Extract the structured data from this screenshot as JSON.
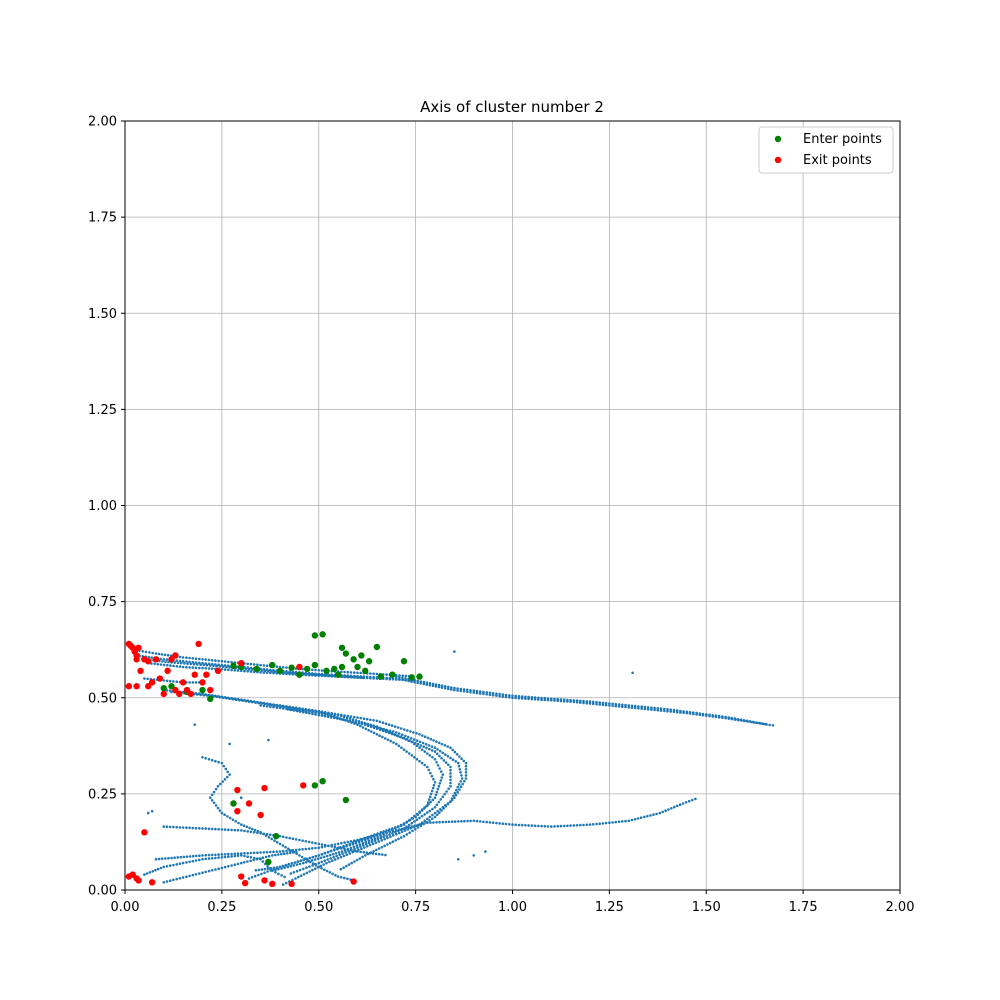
{
  "chart_data": {
    "type": "scatter",
    "title": "Axis of cluster number 2",
    "xlabel": "",
    "ylabel": "",
    "xlim": [
      0,
      2
    ],
    "ylim": [
      0,
      2
    ],
    "x_ticks": [
      0,
      0.25,
      0.5,
      0.75,
      1.0,
      1.25,
      1.5,
      1.75,
      2.0
    ],
    "y_ticks": [
      0,
      0.25,
      0.5,
      0.75,
      1.0,
      1.25,
      1.5,
      1.75,
      2.0
    ],
    "x_tick_labels": [
      "0.00",
      "0.25",
      "0.50",
      "0.75",
      "1.00",
      "1.25",
      "1.50",
      "1.75",
      "2.00"
    ],
    "y_tick_labels": [
      "0.00",
      "0.25",
      "0.50",
      "0.75",
      "1.00",
      "1.25",
      "1.50",
      "1.75",
      "2.00"
    ],
    "grid": true,
    "legend_position": "top-right",
    "trajectory_color": "#1f77b4",
    "trajectories": [
      [
        [
          0.02,
          0.625
        ],
        [
          0.08,
          0.615
        ],
        [
          0.15,
          0.605
        ],
        [
          0.25,
          0.595
        ],
        [
          0.35,
          0.585
        ],
        [
          0.45,
          0.575
        ],
        [
          0.55,
          0.568
        ],
        [
          0.65,
          0.562
        ],
        [
          0.75,
          0.555
        ]
      ],
      [
        [
          0.03,
          0.61
        ],
        [
          0.1,
          0.6
        ],
        [
          0.2,
          0.59
        ],
        [
          0.3,
          0.58
        ],
        [
          0.4,
          0.57
        ],
        [
          0.5,
          0.562
        ],
        [
          0.6,
          0.556
        ],
        [
          0.7,
          0.55
        ]
      ],
      [
        [
          0.05,
          0.6
        ],
        [
          0.12,
          0.592
        ],
        [
          0.22,
          0.584
        ],
        [
          0.32,
          0.574
        ],
        [
          0.42,
          0.565
        ],
        [
          0.52,
          0.558
        ],
        [
          0.62,
          0.552
        ]
      ],
      [
        [
          0.06,
          0.59
        ],
        [
          0.15,
          0.58
        ],
        [
          0.25,
          0.574
        ],
        [
          0.35,
          0.566
        ],
        [
          0.45,
          0.56
        ],
        [
          0.55,
          0.555
        ],
        [
          0.65,
          0.55
        ],
        [
          0.75,
          0.545
        ]
      ],
      [
        [
          0.7,
          0.55
        ],
        [
          0.85,
          0.52
        ],
        [
          1.0,
          0.5
        ],
        [
          1.15,
          0.49
        ],
        [
          1.3,
          0.475
        ],
        [
          1.45,
          0.46
        ],
        [
          1.55,
          0.447
        ],
        [
          1.68,
          0.427
        ]
      ],
      [
        [
          0.7,
          0.555
        ],
        [
          0.85,
          0.525
        ],
        [
          1.0,
          0.505
        ],
        [
          1.2,
          0.49
        ],
        [
          1.4,
          0.47
        ],
        [
          1.55,
          0.45
        ],
        [
          1.66,
          0.43
        ]
      ],
      [
        [
          0.1,
          0.52
        ],
        [
          0.2,
          0.51
        ],
        [
          0.3,
          0.495
        ],
        [
          0.4,
          0.48
        ],
        [
          0.5,
          0.465
        ],
        [
          0.6,
          0.43
        ],
        [
          0.7,
          0.38
        ],
        [
          0.78,
          0.32
        ],
        [
          0.8,
          0.28
        ],
        [
          0.78,
          0.22
        ],
        [
          0.72,
          0.17
        ],
        [
          0.62,
          0.13
        ],
        [
          0.5,
          0.09
        ],
        [
          0.4,
          0.06
        ],
        [
          0.33,
          0.05
        ]
      ],
      [
        [
          0.12,
          0.515
        ],
        [
          0.22,
          0.505
        ],
        [
          0.32,
          0.49
        ],
        [
          0.42,
          0.475
        ],
        [
          0.55,
          0.455
        ],
        [
          0.65,
          0.425
        ],
        [
          0.74,
          0.385
        ],
        [
          0.8,
          0.34
        ],
        [
          0.82,
          0.3
        ],
        [
          0.8,
          0.24
        ],
        [
          0.75,
          0.19
        ],
        [
          0.66,
          0.14
        ],
        [
          0.56,
          0.1
        ],
        [
          0.46,
          0.07
        ],
        [
          0.38,
          0.05
        ]
      ],
      [
        [
          0.35,
          0.48
        ],
        [
          0.5,
          0.46
        ],
        [
          0.62,
          0.43
        ],
        [
          0.72,
          0.395
        ],
        [
          0.8,
          0.36
        ],
        [
          0.84,
          0.32
        ],
        [
          0.84,
          0.27
        ],
        [
          0.8,
          0.215
        ],
        [
          0.72,
          0.16
        ],
        [
          0.6,
          0.11
        ],
        [
          0.5,
          0.07
        ],
        [
          0.42,
          0.04
        ]
      ],
      [
        [
          0.42,
          0.47
        ],
        [
          0.58,
          0.44
        ],
        [
          0.7,
          0.41
        ],
        [
          0.8,
          0.37
        ],
        [
          0.86,
          0.33
        ],
        [
          0.87,
          0.29
        ],
        [
          0.84,
          0.23
        ],
        [
          0.76,
          0.17
        ],
        [
          0.64,
          0.12
        ],
        [
          0.52,
          0.07
        ],
        [
          0.44,
          0.03
        ],
        [
          0.4,
          0.01
        ]
      ],
      [
        [
          0.5,
          0.465
        ],
        [
          0.65,
          0.44
        ],
        [
          0.76,
          0.405
        ],
        [
          0.84,
          0.37
        ],
        [
          0.88,
          0.33
        ],
        [
          0.88,
          0.29
        ],
        [
          0.85,
          0.24
        ],
        [
          0.8,
          0.19
        ],
        [
          0.72,
          0.14
        ],
        [
          0.62,
          0.09
        ],
        [
          0.55,
          0.05
        ]
      ],
      [
        [
          0.1,
          0.165
        ],
        [
          0.2,
          0.16
        ],
        [
          0.3,
          0.155
        ],
        [
          0.4,
          0.14
        ],
        [
          0.5,
          0.12
        ],
        [
          0.6,
          0.1
        ],
        [
          0.68,
          0.09
        ]
      ],
      [
        [
          0.08,
          0.08
        ],
        [
          0.2,
          0.09
        ],
        [
          0.3,
          0.095
        ],
        [
          0.4,
          0.1
        ],
        [
          0.5,
          0.11
        ],
        [
          0.6,
          0.13
        ],
        [
          0.7,
          0.155
        ],
        [
          0.78,
          0.175
        ],
        [
          0.9,
          0.18
        ],
        [
          1.0,
          0.17
        ],
        [
          1.1,
          0.165
        ],
        [
          1.2,
          0.17
        ],
        [
          1.3,
          0.18
        ],
        [
          1.38,
          0.2
        ],
        [
          1.44,
          0.225
        ],
        [
          1.48,
          0.24
        ]
      ],
      [
        [
          0.2,
          0.345
        ],
        [
          0.25,
          0.33
        ],
        [
          0.27,
          0.3
        ],
        [
          0.24,
          0.27
        ],
        [
          0.22,
          0.24
        ],
        [
          0.25,
          0.2
        ],
        [
          0.3,
          0.17
        ],
        [
          0.35,
          0.15
        ],
        [
          0.4,
          0.12
        ],
        [
          0.45,
          0.09
        ],
        [
          0.5,
          0.06
        ],
        [
          0.55,
          0.035
        ],
        [
          0.59,
          0.025
        ]
      ],
      [
        [
          0.05,
          0.04
        ],
        [
          0.1,
          0.06
        ],
        [
          0.2,
          0.08
        ],
        [
          0.3,
          0.09
        ],
        [
          0.35,
          0.08
        ],
        [
          0.38,
          0.05
        ],
        [
          0.42,
          0.03
        ]
      ],
      [
        [
          0.1,
          0.02
        ],
        [
          0.2,
          0.045
        ],
        [
          0.3,
          0.07
        ],
        [
          0.38,
          0.09
        ],
        [
          0.45,
          0.1
        ]
      ],
      [
        [
          0.32,
          0.03
        ],
        [
          0.4,
          0.06
        ],
        [
          0.5,
          0.09
        ],
        [
          0.58,
          0.12
        ],
        [
          0.66,
          0.15
        ],
        [
          0.72,
          0.17
        ]
      ],
      [
        [
          0.05,
          0.55
        ],
        [
          0.1,
          0.545
        ],
        [
          0.15,
          0.54
        ],
        [
          0.2,
          0.54
        ]
      ]
    ],
    "scattered_points": [
      [
        0.85,
        0.62
      ],
      [
        1.31,
        0.565
      ],
      [
        0.18,
        0.43
      ],
      [
        0.37,
        0.39
      ],
      [
        0.27,
        0.38
      ],
      [
        0.86,
        0.08
      ],
      [
        0.9,
        0.09
      ],
      [
        0.93,
        0.1
      ],
      [
        0.06,
        0.2
      ],
      [
        0.07,
        0.205
      ],
      [
        0.3,
        0.24
      ]
    ],
    "series": [
      {
        "name": "Enter points",
        "color": "#008000",
        "points": [
          [
            0.1,
            0.525
          ],
          [
            0.12,
            0.53
          ],
          [
            0.16,
            0.515
          ],
          [
            0.2,
            0.52
          ],
          [
            0.22,
            0.497
          ],
          [
            0.28,
            0.583
          ],
          [
            0.3,
            0.58
          ],
          [
            0.34,
            0.575
          ],
          [
            0.38,
            0.585
          ],
          [
            0.4,
            0.57
          ],
          [
            0.43,
            0.578
          ],
          [
            0.45,
            0.56
          ],
          [
            0.47,
            0.575
          ],
          [
            0.49,
            0.585
          ],
          [
            0.49,
            0.662
          ],
          [
            0.51,
            0.665
          ],
          [
            0.52,
            0.57
          ],
          [
            0.54,
            0.575
          ],
          [
            0.55,
            0.56
          ],
          [
            0.56,
            0.58
          ],
          [
            0.56,
            0.63
          ],
          [
            0.57,
            0.615
          ],
          [
            0.59,
            0.6
          ],
          [
            0.6,
            0.58
          ],
          [
            0.61,
            0.61
          ],
          [
            0.62,
            0.57
          ],
          [
            0.63,
            0.595
          ],
          [
            0.65,
            0.632
          ],
          [
            0.66,
            0.555
          ],
          [
            0.69,
            0.56
          ],
          [
            0.72,
            0.595
          ],
          [
            0.74,
            0.553
          ],
          [
            0.76,
            0.555
          ],
          [
            0.49,
            0.272
          ],
          [
            0.51,
            0.283
          ],
          [
            0.57,
            0.234
          ],
          [
            0.28,
            0.225
          ],
          [
            0.39,
            0.14
          ],
          [
            0.37,
            0.073
          ]
        ]
      },
      {
        "name": "Exit points",
        "color": "#ff0000",
        "points": [
          [
            0.01,
            0.64
          ],
          [
            0.015,
            0.635
          ],
          [
            0.02,
            0.63
          ],
          [
            0.025,
            0.62
          ],
          [
            0.03,
            0.61
          ],
          [
            0.03,
            0.6
          ],
          [
            0.035,
            0.63
          ],
          [
            0.04,
            0.57
          ],
          [
            0.05,
            0.6
          ],
          [
            0.06,
            0.595
          ],
          [
            0.06,
            0.53
          ],
          [
            0.07,
            0.54
          ],
          [
            0.08,
            0.6
          ],
          [
            0.09,
            0.55
          ],
          [
            0.1,
            0.51
          ],
          [
            0.11,
            0.57
          ],
          [
            0.12,
            0.6
          ],
          [
            0.13,
            0.52
          ],
          [
            0.13,
            0.61
          ],
          [
            0.14,
            0.51
          ],
          [
            0.15,
            0.54
          ],
          [
            0.16,
            0.52
          ],
          [
            0.17,
            0.51
          ],
          [
            0.18,
            0.56
          ],
          [
            0.19,
            0.64
          ],
          [
            0.2,
            0.54
          ],
          [
            0.21,
            0.56
          ],
          [
            0.22,
            0.52
          ],
          [
            0.24,
            0.57
          ],
          [
            0.3,
            0.59
          ],
          [
            0.45,
            0.58
          ],
          [
            0.01,
            0.53
          ],
          [
            0.03,
            0.53
          ],
          [
            0.46,
            0.272
          ],
          [
            0.36,
            0.265
          ],
          [
            0.29,
            0.26
          ],
          [
            0.29,
            0.205
          ],
          [
            0.32,
            0.225
          ],
          [
            0.35,
            0.195
          ],
          [
            0.05,
            0.15
          ],
          [
            0.01,
            0.035
          ],
          [
            0.02,
            0.04
          ],
          [
            0.03,
            0.03
          ],
          [
            0.035,
            0.025
          ],
          [
            0.07,
            0.02
          ],
          [
            0.3,
            0.035
          ],
          [
            0.31,
            0.018
          ],
          [
            0.36,
            0.025
          ],
          [
            0.38,
            0.016
          ],
          [
            0.43,
            0.016
          ],
          [
            0.59,
            0.022
          ]
        ]
      }
    ]
  }
}
